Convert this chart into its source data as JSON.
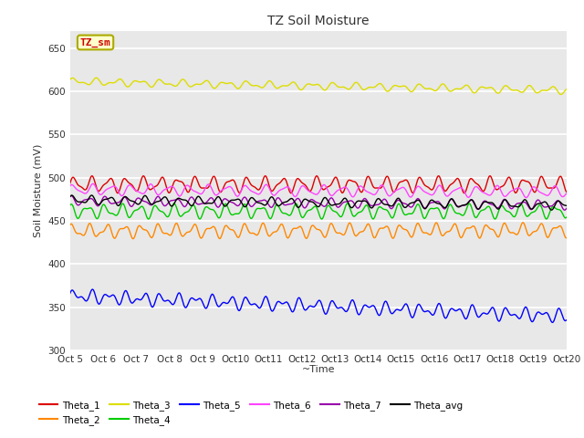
{
  "title": "TZ Soil Moisture",
  "xlabel": "~Time",
  "ylabel": "Soil Moisture (mV)",
  "ylim": [
    300,
    670
  ],
  "yticks": [
    300,
    350,
    400,
    450,
    500,
    550,
    600,
    650
  ],
  "xlim": [
    0,
    360
  ],
  "fig_bg_color": "#ffffff",
  "plot_bg_color": "#e8e8e8",
  "grid_color": "#ffffff",
  "annotation_text": "TZ_sm",
  "annotation_color": "#cc0000",
  "annotation_bg": "#ffffcc",
  "annotation_border": "#aaaa00",
  "series_order": [
    "Theta_1",
    "Theta_2",
    "Theta_3",
    "Theta_4",
    "Theta_5",
    "Theta_6",
    "Theta_7",
    "Theta_avg"
  ],
  "series": {
    "Theta_1": {
      "color": "#dd0000",
      "base": 492,
      "amp": 7,
      "trend": 0.0,
      "phase": 0.0,
      "freq": 0.5,
      "amp2": 3,
      "freq2": 0.85,
      "phase2": 0.5
    },
    "Theta_2": {
      "color": "#ff8800",
      "base": 438,
      "amp": 6,
      "trend": 0.003,
      "phase": 0.8,
      "freq": 0.5,
      "amp2": 3,
      "freq2": 0.9,
      "phase2": 1.2
    },
    "Theta_3": {
      "color": "#dddd00",
      "base": 611,
      "amp": 3,
      "trend": -0.028,
      "phase": 0.3,
      "freq": 0.4,
      "amp2": 2,
      "freq2": 0.7,
      "phase2": 0.8
    },
    "Theta_4": {
      "color": "#00cc00",
      "base": 461,
      "amp": 6,
      "trend": 0.0,
      "phase": 1.5,
      "freq": 0.5,
      "amp2": 3,
      "freq2": 0.85,
      "phase2": 0.3
    },
    "Theta_5": {
      "color": "#0000ff",
      "base": 363,
      "amp": 5,
      "trend": -0.065,
      "phase": 0.0,
      "freq": 0.5,
      "amp2": 4,
      "freq2": 0.8,
      "phase2": 0.9
    },
    "Theta_6": {
      "color": "#ff44ff",
      "base": 486,
      "amp": 5,
      "trend": -0.007,
      "phase": 0.5,
      "freq": 0.45,
      "amp2": 2,
      "freq2": 0.75,
      "phase2": 1.5
    },
    "Theta_7": {
      "color": "#9900aa",
      "base": 473,
      "amp": 4,
      "trend": -0.013,
      "phase": 1.2,
      "freq": 0.5,
      "amp2": 2,
      "freq2": 0.8,
      "phase2": 0.7
    },
    "Theta_avg": {
      "color": "#000000",
      "base": 474,
      "amp": 4,
      "trend": -0.016,
      "phase": 0.6,
      "freq": 0.48,
      "amp2": 2,
      "freq2": 0.82,
      "phase2": 1.0
    }
  },
  "x_tick_labels": [
    "Oct 5",
    "Oct 6",
    "Oct 7",
    "Oct 8",
    "Oct 9",
    "Oct 10",
    "Oct 11",
    "Oct 12",
    "Oct 13",
    "Oct 14",
    "Oct 15",
    "Oct 16",
    "Oct 17",
    "Oct 18",
    "Oct 19",
    "Oct 20"
  ],
  "n_points": 1440
}
